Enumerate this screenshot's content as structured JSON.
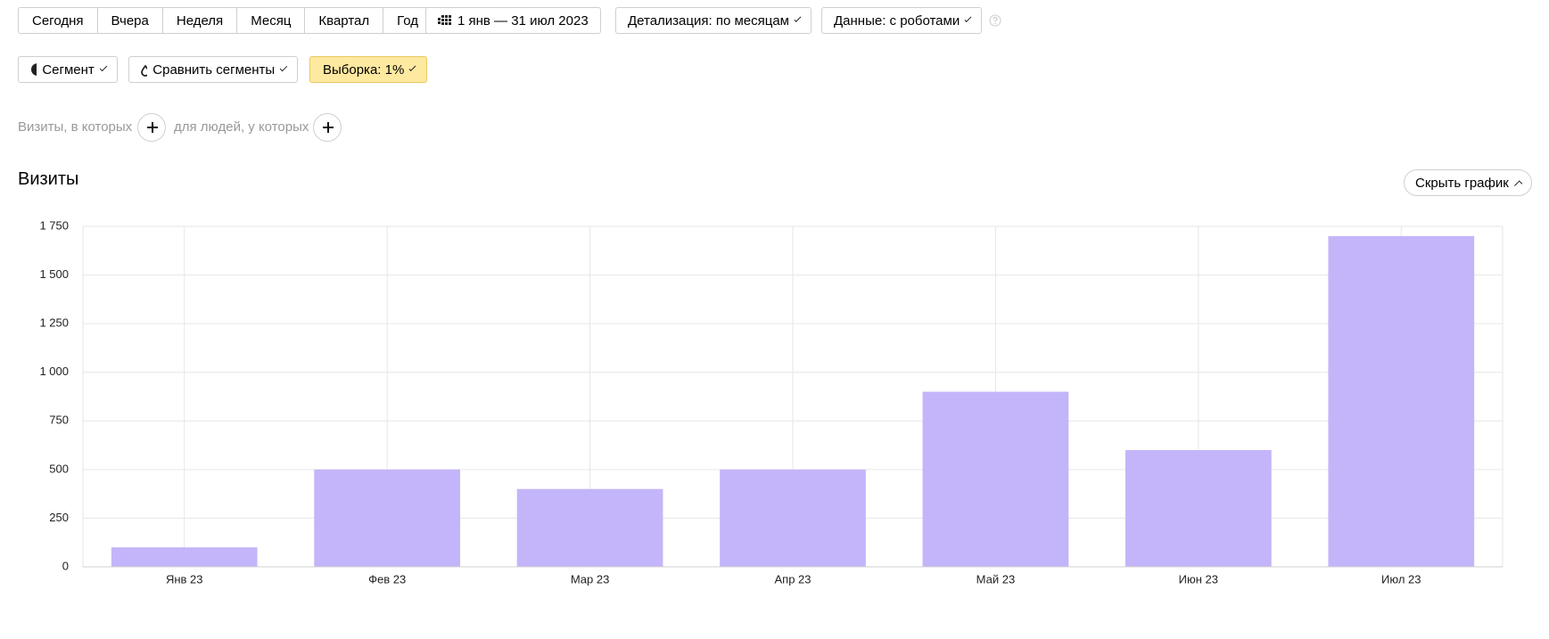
{
  "toolbar": {
    "periods": [
      "Сегодня",
      "Вчера",
      "Неделя",
      "Месяц",
      "Квартал",
      "Год"
    ],
    "date_range": "1 янв — 31 июл 2023",
    "detail": "Детализация: по месяцам",
    "data_mode": "Данные: с роботами",
    "segment": "Сегмент",
    "compare": "Сравнить сегменты",
    "sample": "Выборка: 1%"
  },
  "filters": {
    "visits": "Визиты, в которых",
    "people": "для людей, у которых"
  },
  "hide_chart": "Скрыть график",
  "chart_data": {
    "type": "bar",
    "title": "Визиты",
    "categories": [
      "Янв 23",
      "Фев 23",
      "Мар 23",
      "Апр 23",
      "Май 23",
      "Июн 23",
      "Июл 23"
    ],
    "values": [
      100,
      500,
      400,
      500,
      900,
      600,
      1700
    ],
    "color": "#c4b5fa",
    "ylim": [
      0,
      1750
    ],
    "yticks": [
      0,
      250,
      500,
      750,
      {
        "value": 1000,
        "label": "1 000"
      },
      {
        "value": 1250,
        "label": "1 250"
      },
      {
        "value": 1500,
        "label": "1 500"
      },
      {
        "value": 1750,
        "label": "1 750"
      }
    ],
    "grid": true
  }
}
